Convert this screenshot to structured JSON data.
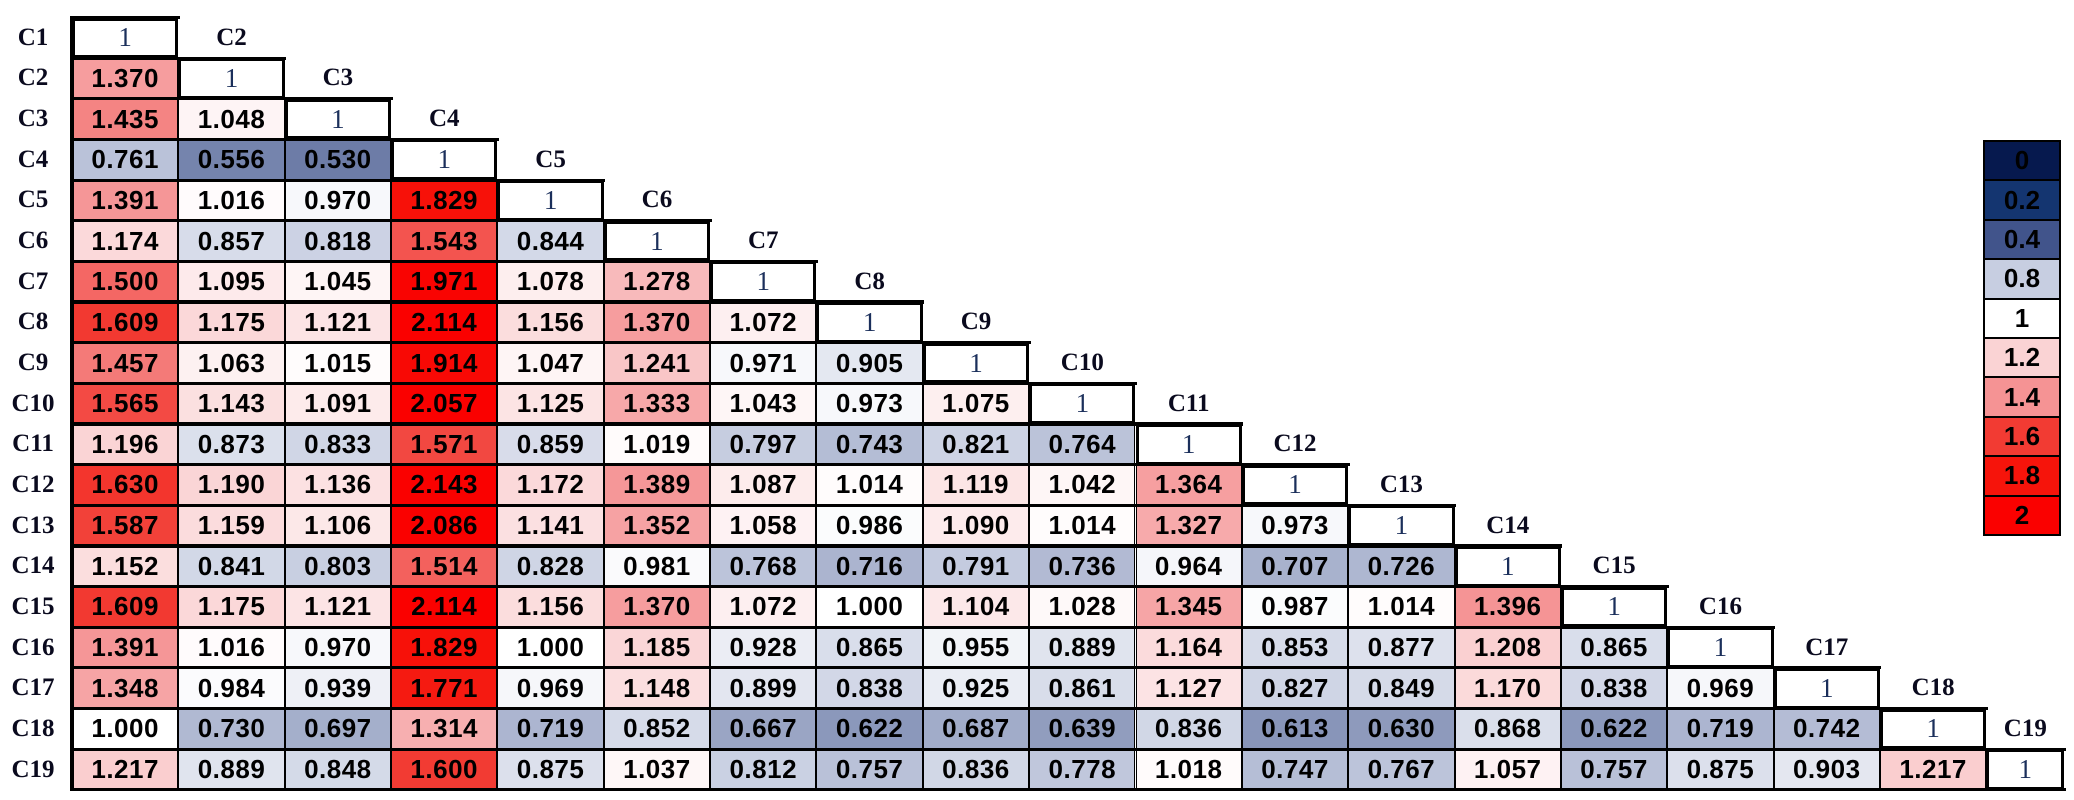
{
  "chart_data": {
    "type": "heatmap",
    "title": "",
    "diagonal_label": "1",
    "labels": [
      "C1",
      "C2",
      "C3",
      "C4",
      "C5",
      "C6",
      "C7",
      "C8",
      "C9",
      "C10",
      "C11",
      "C12",
      "C13",
      "C14",
      "C15",
      "C16",
      "C17",
      "C18",
      "C19"
    ],
    "value_range": [
      0,
      2
    ],
    "rows": [
      {
        "label": "C1",
        "values": []
      },
      {
        "label": "C2",
        "values": [
          "1.370"
        ]
      },
      {
        "label": "C3",
        "values": [
          "1.435",
          "1.048"
        ]
      },
      {
        "label": "C4",
        "values": [
          "0.761",
          "0.556",
          "0.530"
        ]
      },
      {
        "label": "C5",
        "values": [
          "1.391",
          "1.016",
          "0.970",
          "1.829"
        ]
      },
      {
        "label": "C6",
        "values": [
          "1.174",
          "0.857",
          "0.818",
          "1.543",
          "0.844"
        ]
      },
      {
        "label": "C7",
        "values": [
          "1.500",
          "1.095",
          "1.045",
          "1.971",
          "1.078",
          "1.278"
        ]
      },
      {
        "label": "C8",
        "values": [
          "1.609",
          "1.175",
          "1.121",
          "2.114",
          "1.156",
          "1.370",
          "1.072"
        ]
      },
      {
        "label": "C9",
        "values": [
          "1.457",
          "1.063",
          "1.015",
          "1.914",
          "1.047",
          "1.241",
          "0.971",
          "0.905"
        ]
      },
      {
        "label": "C10",
        "values": [
          "1.565",
          "1.143",
          "1.091",
          "2.057",
          "1.125",
          "1.333",
          "1.043",
          "0.973",
          "1.075"
        ]
      },
      {
        "label": "C11",
        "values": [
          "1.196",
          "0.873",
          "0.833",
          "1.571",
          "0.859",
          "1.019",
          "0.797",
          "0.743",
          "0.821",
          "0.764"
        ]
      },
      {
        "label": "C12",
        "values": [
          "1.630",
          "1.190",
          "1.136",
          "2.143",
          "1.172",
          "1.389",
          "1.087",
          "1.014",
          "1.119",
          "1.042",
          "1.364"
        ]
      },
      {
        "label": "C13",
        "values": [
          "1.587",
          "1.159",
          "1.106",
          "2.086",
          "1.141",
          "1.352",
          "1.058",
          "0.986",
          "1.090",
          "1.014",
          "1.327",
          "0.973"
        ]
      },
      {
        "label": "C14",
        "values": [
          "1.152",
          "0.841",
          "0.803",
          "1.514",
          "0.828",
          "0.981",
          "0.768",
          "0.716",
          "0.791",
          "0.736",
          "0.964",
          "0.707",
          "0.726"
        ]
      },
      {
        "label": "C15",
        "values": [
          "1.609",
          "1.175",
          "1.121",
          "2.114",
          "1.156",
          "1.370",
          "1.072",
          "1.000",
          "1.104",
          "1.028",
          "1.345",
          "0.987",
          "1.014",
          "1.396"
        ]
      },
      {
        "label": "C16",
        "values": [
          "1.391",
          "1.016",
          "0.970",
          "1.829",
          "1.000",
          "1.185",
          "0.928",
          "0.865",
          "0.955",
          "0.889",
          "1.164",
          "0.853",
          "0.877",
          "1.208",
          "0.865"
        ]
      },
      {
        "label": "C17",
        "values": [
          "1.348",
          "0.984",
          "0.939",
          "1.771",
          "0.969",
          "1.148",
          "0.899",
          "0.838",
          "0.925",
          "0.861",
          "1.127",
          "0.827",
          "0.849",
          "1.170",
          "0.838",
          "0.969"
        ]
      },
      {
        "label": "C18",
        "values": [
          "1.000",
          "0.730",
          "0.697",
          "1.314",
          "0.719",
          "0.852",
          "0.667",
          "0.622",
          "0.687",
          "0.639",
          "0.836",
          "0.613",
          "0.630",
          "0.868",
          "0.622",
          "0.719",
          "0.742"
        ]
      },
      {
        "label": "C19",
        "values": [
          "1.217",
          "0.889",
          "0.848",
          "1.600",
          "0.875",
          "1.037",
          "0.812",
          "0.757",
          "0.836",
          "0.778",
          "1.018",
          "0.747",
          "0.767",
          "1.057",
          "0.757",
          "0.875",
          "0.903",
          "1.217"
        ]
      }
    ]
  },
  "legend": {
    "values": [
      "0",
      "0.2",
      "0.4",
      "0.8",
      "1",
      "1.2",
      "1.4",
      "1.6",
      "1.8",
      "2"
    ],
    "colors": [
      "#06194E",
      "#143570",
      "#41548B",
      "#C7CEE1",
      "#FFFFFF",
      "#FAD3D4",
      "#F59394",
      "#F23B33",
      "#F6140B",
      "#FA0100"
    ]
  },
  "color_scale": {
    "stops": [
      [
        0,
        "#06194E"
      ],
      [
        0.2,
        "#143570"
      ],
      [
        0.4,
        "#41548B"
      ],
      [
        0.8,
        "#C7CEE1"
      ],
      [
        1,
        "#FFFFFF"
      ],
      [
        1.2,
        "#FAD3D4"
      ],
      [
        1.4,
        "#F59394"
      ],
      [
        1.6,
        "#F23B33"
      ],
      [
        1.8,
        "#F6140B"
      ],
      [
        2,
        "#FA0100"
      ]
    ]
  }
}
